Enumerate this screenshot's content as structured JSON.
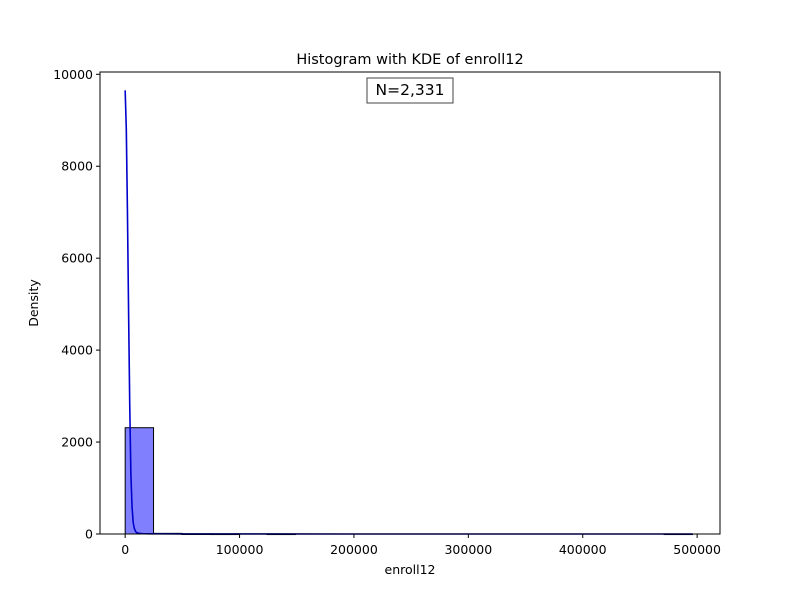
{
  "chart_data": {
    "type": "bar",
    "title": "Histogram with KDE of enroll12",
    "xlabel": "enroll12",
    "ylabel": "Density",
    "xlim": [
      -22000,
      520000
    ],
    "ylim": [
      0,
      10050
    ],
    "xticks": [
      0,
      100000,
      200000,
      300000,
      400000,
      500000
    ],
    "yticks": [
      0,
      2000,
      4000,
      6000,
      8000,
      10000
    ],
    "grid": false,
    "annotation": "N=2,331",
    "bar_color": "#8080ff",
    "bar_edge_color": "#000000",
    "kde_color": "#0000cc",
    "bins": [
      {
        "x0": 0,
        "x1": 24800,
        "count": 2312
      },
      {
        "x0": 24800,
        "x1": 49600,
        "count": 14
      },
      {
        "x0": 49600,
        "x1": 74400,
        "count": 2
      },
      {
        "x0": 74400,
        "x1": 99200,
        "count": 1
      },
      {
        "x0": 99200,
        "x1": 124000,
        "count": 0
      },
      {
        "x0": 124000,
        "x1": 148800,
        "count": 1
      },
      {
        "x0": 148800,
        "x1": 173600,
        "count": 0
      },
      {
        "x0": 173600,
        "x1": 198400,
        "count": 0
      },
      {
        "x0": 198400,
        "x1": 223200,
        "count": 0
      },
      {
        "x0": 223200,
        "x1": 248000,
        "count": 0
      },
      {
        "x0": 248000,
        "x1": 272800,
        "count": 0
      },
      {
        "x0": 272800,
        "x1": 297600,
        "count": 0
      },
      {
        "x0": 297600,
        "x1": 322400,
        "count": 0
      },
      {
        "x0": 322400,
        "x1": 347200,
        "count": 0
      },
      {
        "x0": 347200,
        "x1": 372000,
        "count": 0
      },
      {
        "x0": 372000,
        "x1": 396800,
        "count": 0
      },
      {
        "x0": 396800,
        "x1": 421600,
        "count": 0
      },
      {
        "x0": 421600,
        "x1": 446400,
        "count": 0
      },
      {
        "x0": 446400,
        "x1": 471200,
        "count": 0
      },
      {
        "x0": 471200,
        "x1": 496000,
        "count": 1
      }
    ],
    "kde": {
      "x": [
        0,
        1000,
        2000,
        3000,
        4000,
        5000,
        6000,
        7000,
        8000,
        9000,
        10000,
        12000,
        15000,
        20000,
        30000,
        50000,
        100000,
        200000,
        300000,
        400000,
        496000
      ],
      "y": [
        9650,
        8800,
        7000,
        4800,
        2800,
        1300,
        600,
        250,
        120,
        60,
        30,
        15,
        8,
        5,
        3,
        2,
        1,
        0,
        0,
        0,
        0
      ]
    }
  }
}
